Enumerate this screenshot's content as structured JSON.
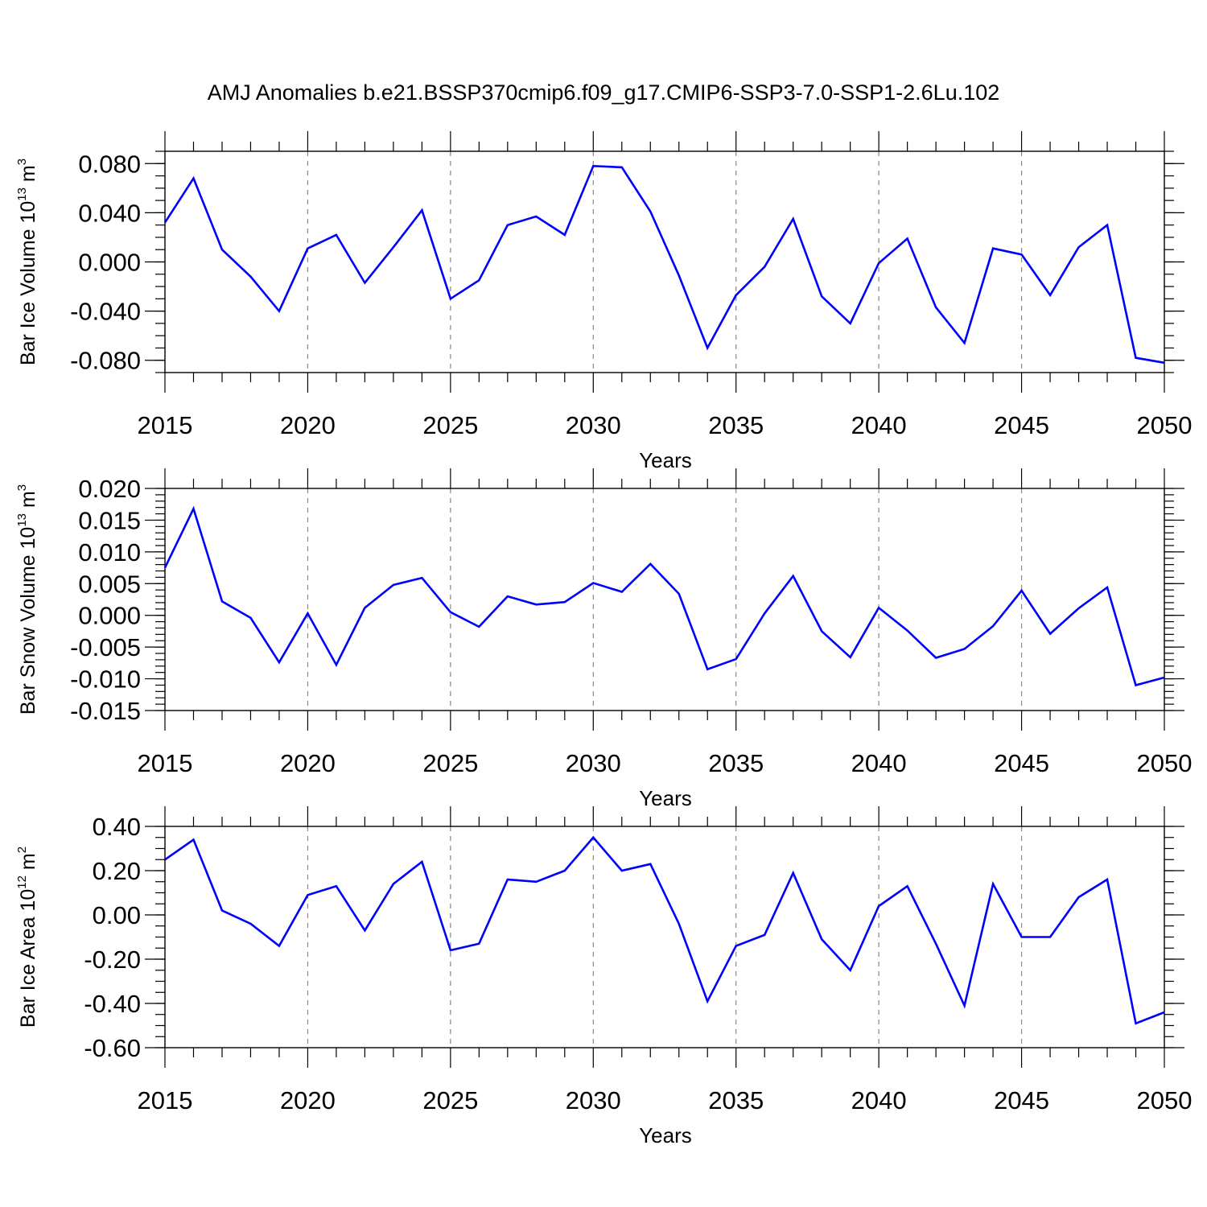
{
  "title": "AMJ Anomalies b.e21.BSSP370cmip6.f09_g17.CMIP6-SSP3-7.0-SSP1-2.6Lu.102",
  "colors": {
    "line": "#0000ff",
    "axis": "#000000",
    "grid": "#888888"
  },
  "chart_data": [
    {
      "type": "line",
      "xlabel": "Years",
      "ylabel": {
        "base": "Bar Ice Volume 10",
        "exp": "13",
        "unit": " m",
        "unit_exp": "3"
      },
      "xlim": [
        2015,
        2050
      ],
      "ylim": [
        -0.09,
        0.09
      ],
      "x_ticks": [
        "2015",
        "2020",
        "2025",
        "2030",
        "2035",
        "2040",
        "2045",
        "2050"
      ],
      "y_tick_values": [
        -0.08,
        -0.04,
        0.0,
        0.04,
        0.08
      ],
      "y_tick_labels": [
        "-0.080",
        "-0.040",
        "0.000",
        "0.040",
        "0.080"
      ],
      "y_minor_step": 0.01,
      "x": [
        2015,
        2016,
        2017,
        2018,
        2019,
        2020,
        2021,
        2022,
        2023,
        2024,
        2025,
        2026,
        2027,
        2028,
        2029,
        2030,
        2031,
        2032,
        2033,
        2034,
        2035,
        2036,
        2037,
        2038,
        2039,
        2040,
        2041,
        2042,
        2043,
        2044,
        2045,
        2046,
        2047,
        2048,
        2049,
        2050
      ],
      "values": [
        0.032,
        0.068,
        0.01,
        -0.012,
        -0.04,
        0.011,
        0.022,
        -0.017,
        0.012,
        0.042,
        -0.03,
        -0.015,
        0.03,
        0.037,
        0.022,
        0.078,
        0.077,
        0.041,
        -0.011,
        -0.07,
        -0.027,
        -0.004,
        0.035,
        -0.028,
        -0.05,
        -0.001,
        0.019,
        -0.037,
        -0.066,
        0.011,
        0.006,
        -0.027,
        0.012,
        0.03,
        -0.078,
        -0.082
      ]
    },
    {
      "type": "line",
      "xlabel": "Years",
      "ylabel": {
        "base": "Bar Snow Volume 10",
        "exp": "13",
        "unit": " m",
        "unit_exp": "3"
      },
      "xlim": [
        2015,
        2050
      ],
      "ylim": [
        -0.015,
        0.02
      ],
      "x_ticks": [
        "2015",
        "2020",
        "2025",
        "2030",
        "2035",
        "2040",
        "2045",
        "2050"
      ],
      "y_tick_values": [
        -0.015,
        -0.01,
        -0.005,
        0.0,
        0.005,
        0.01,
        0.015,
        0.02
      ],
      "y_tick_labels": [
        "-0.015",
        "-0.010",
        "-0.005",
        "0.000",
        "0.005",
        "0.010",
        "0.015",
        "0.020"
      ],
      "y_minor_step": 0.001,
      "x": [
        2015,
        2016,
        2017,
        2018,
        2019,
        2020,
        2021,
        2022,
        2023,
        2024,
        2025,
        2026,
        2027,
        2028,
        2029,
        2030,
        2031,
        2032,
        2033,
        2034,
        2035,
        2036,
        2037,
        2038,
        2039,
        2040,
        2041,
        2042,
        2043,
        2044,
        2045,
        2046,
        2047,
        2048,
        2049,
        2050
      ],
      "values": [
        0.0075,
        0.0168,
        0.0022,
        -0.0004,
        -0.0074,
        0.0003,
        -0.0078,
        0.0012,
        0.0048,
        0.0059,
        0.0005,
        -0.0018,
        0.003,
        0.0017,
        0.0021,
        0.0051,
        0.0037,
        0.0081,
        0.0034,
        -0.0085,
        -0.0069,
        0.0003,
        0.0062,
        -0.0025,
        -0.0066,
        0.0012,
        -0.0024,
        -0.0067,
        -0.0053,
        -0.0017,
        0.0039,
        -0.0029,
        0.0011,
        0.0044,
        -0.011,
        -0.0098
      ]
    },
    {
      "type": "line",
      "xlabel": "Years",
      "ylabel": {
        "base": "Bar Ice Area 10",
        "exp": "12",
        "unit": " m",
        "unit_exp": "2"
      },
      "xlim": [
        2015,
        2050
      ],
      "ylim": [
        -0.6,
        0.4
      ],
      "x_ticks": [
        "2015",
        "2020",
        "2025",
        "2030",
        "2035",
        "2040",
        "2045",
        "2050"
      ],
      "y_tick_values": [
        -0.6,
        -0.4,
        -0.2,
        0.0,
        0.2,
        0.4
      ],
      "y_tick_labels": [
        "-0.60",
        "-0.40",
        "-0.20",
        "0.00",
        "0.20",
        "0.40"
      ],
      "y_minor_step": 0.05,
      "x": [
        2015,
        2016,
        2017,
        2018,
        2019,
        2020,
        2021,
        2022,
        2023,
        2024,
        2025,
        2026,
        2027,
        2028,
        2029,
        2030,
        2031,
        2032,
        2033,
        2034,
        2035,
        2036,
        2037,
        2038,
        2039,
        2040,
        2041,
        2042,
        2043,
        2044,
        2045,
        2046,
        2047,
        2048,
        2049,
        2050
      ],
      "values": [
        0.25,
        0.34,
        0.02,
        -0.04,
        -0.14,
        0.09,
        0.13,
        -0.07,
        0.14,
        0.24,
        -0.16,
        -0.13,
        0.16,
        0.15,
        0.2,
        0.35,
        0.2,
        0.23,
        -0.04,
        -0.39,
        -0.14,
        -0.09,
        0.19,
        -0.11,
        -0.25,
        0.04,
        0.13,
        -0.13,
        -0.41,
        0.14,
        -0.1,
        -0.1,
        0.08,
        0.16,
        -0.49,
        -0.44
      ]
    }
  ]
}
